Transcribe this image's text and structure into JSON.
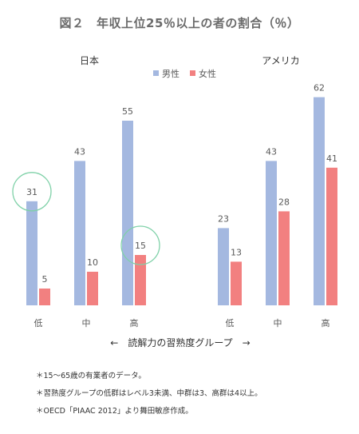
{
  "title": "図２　年収上位25％以上の者の割合（％）",
  "notes": [
    "＊15～65歳の有業者のデータ。",
    "＊習熟度グループの低群はレベル3未満、中群は3、高群は4以上。",
    "＊OECD「PIAAC 2012」より舞田敏彦作成。"
  ],
  "chart_data": {
    "type": "bar",
    "title": "図２　年収上位25％以上の者の割合（％）",
    "xlabel": "←　読解力の習熟度グループ　→",
    "ylabel": "",
    "legend": {
      "position": "top-left",
      "entries": [
        "男性",
        "女性"
      ]
    },
    "colors": {
      "男性": "#a4b8e0",
      "女性": "#f28080"
    },
    "groups": [
      {
        "name": "日本",
        "categories": [
          "低",
          "中",
          "高"
        ],
        "series": [
          {
            "name": "男性",
            "values": [
              31,
              43,
              55
            ]
          },
          {
            "name": "女性",
            "values": [
              5,
              10,
              15
            ]
          }
        ]
      },
      {
        "name": "アメリカ",
        "categories": [
          "低",
          "中",
          "高"
        ],
        "series": [
          {
            "name": "男性",
            "values": [
              23,
              43,
              62
            ]
          },
          {
            "name": "女性",
            "values": [
              13,
              28,
              41
            ]
          }
        ]
      }
    ],
    "highlighted": [
      {
        "group": "日本",
        "category": "低",
        "series": "男性",
        "value": 31
      },
      {
        "group": "日本",
        "category": "高",
        "series": "女性",
        "value": 15
      }
    ],
    "grid": false
  }
}
